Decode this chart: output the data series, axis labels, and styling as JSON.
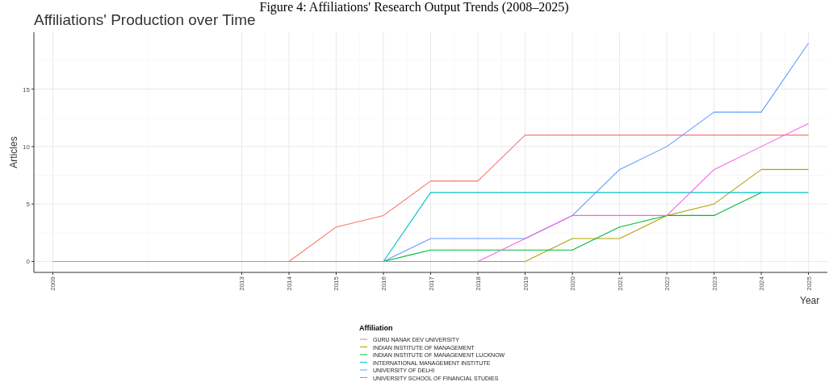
{
  "chart_data": {
    "type": "line",
    "title": "Figure 4: Affiliations' Research Output Trends (2008–2025)",
    "subtitle": "Affiliations' Production over Time",
    "xlabel": "Year",
    "ylabel": "Articles",
    "legend_title": "Affiliation",
    "x": [
      2009,
      2013,
      2014,
      2015,
      2016,
      2017,
      2018,
      2019,
      2020,
      2021,
      2022,
      2023,
      2024,
      2025
    ],
    "series": [
      {
        "name": "GURU NANAK DEV UNIVERSITY",
        "color": "#f8766d",
        "values": [
          null,
          null,
          0,
          3,
          4,
          7,
          7,
          11,
          11,
          11,
          11,
          11,
          11,
          11
        ]
      },
      {
        "name": "INDIAN INSTITUTE OF MANAGEMENT",
        "color": "#b79f00",
        "values": [
          null,
          null,
          null,
          null,
          null,
          null,
          0,
          0,
          2,
          2,
          4,
          5,
          8,
          8
        ]
      },
      {
        "name": "INDIAN INSTITUTE OF MANAGEMENT LUCKNOW",
        "color": "#00ba38",
        "values": [
          null,
          null,
          null,
          null,
          0,
          1,
          1,
          1,
          1,
          3,
          4,
          4,
          6,
          null
        ]
      },
      {
        "name": "INTERNATIONAL MANAGEMENT INSTITUTE",
        "color": "#00bfc4",
        "values": [
          null,
          null,
          null,
          null,
          0,
          6,
          6,
          6,
          6,
          6,
          6,
          6,
          6,
          6
        ]
      },
      {
        "name": "UNIVERSITY OF DELHI",
        "color": "#619cff",
        "values": [
          null,
          null,
          null,
          null,
          0,
          2,
          2,
          2,
          4,
          8,
          10,
          13,
          13,
          19
        ]
      },
      {
        "name": "UNIVERSITY SCHOOL OF FINANCIAL STUDIES",
        "color": "#f564e3",
        "values": [
          0,
          0,
          0,
          0,
          0,
          0,
          0,
          2,
          4,
          4,
          4,
          8,
          10,
          12
        ]
      }
    ],
    "xlim": [
      2008.6,
      2025.4
    ],
    "xticks": [
      2009,
      2013,
      2014,
      2015,
      2016,
      2017,
      2018,
      2019,
      2020,
      2021,
      2022,
      2023,
      2024,
      2025
    ],
    "ylim": [
      -0.95,
      19.95
    ],
    "yticks": [
      0,
      5,
      10,
      15
    ],
    "grid": true,
    "legend": "bottom",
    "marker": "none",
    "line_style": "solid"
  }
}
